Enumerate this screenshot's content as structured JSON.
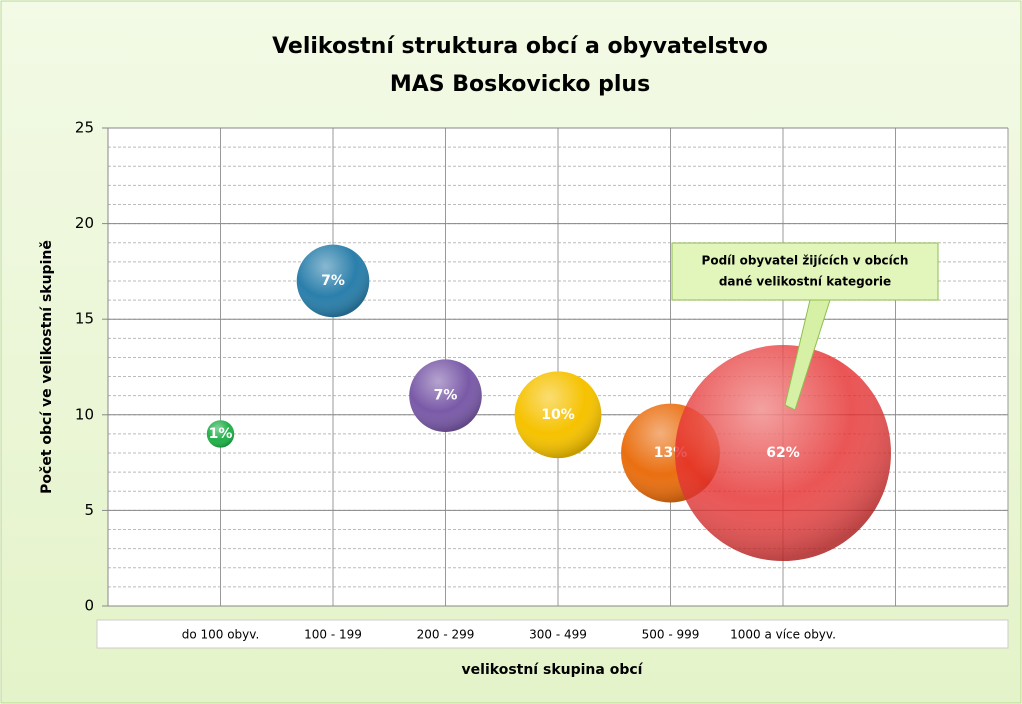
{
  "chart_data": {
    "type": "bubble",
    "title": "Velikostní struktura obcí a obyvatelstvo",
    "subtitle": "MAS Boskovicko plus",
    "x_label": "velikostní skupina obcí",
    "y_label": "Počet obcí ve velikostní skupině",
    "categories": [
      "do 100 obyv.",
      "100 - 199",
      "200 - 299",
      "300 - 499",
      "500 - 999",
      "1000 a více obyv."
    ],
    "values": [
      9,
      17,
      11,
      10,
      8,
      8
    ],
    "sizes": [
      1,
      7,
      7,
      10,
      13,
      62
    ],
    "value_labels": [
      "1%",
      "7%",
      "7%",
      "10%",
      "13%",
      "62%"
    ],
    "colors": [
      "#22b04a",
      "#2a7fab",
      "#7a5aa8",
      "#f6c200",
      "#ea6f10",
      "#e52a2a"
    ],
    "ylim": [
      0,
      25
    ],
    "yticks": [
      0,
      5,
      10,
      15,
      20,
      25
    ],
    "grid": true,
    "annotation": [
      "Podíl obyvatel žijících v obcích",
      "dané velikostní kategorie"
    ]
  }
}
